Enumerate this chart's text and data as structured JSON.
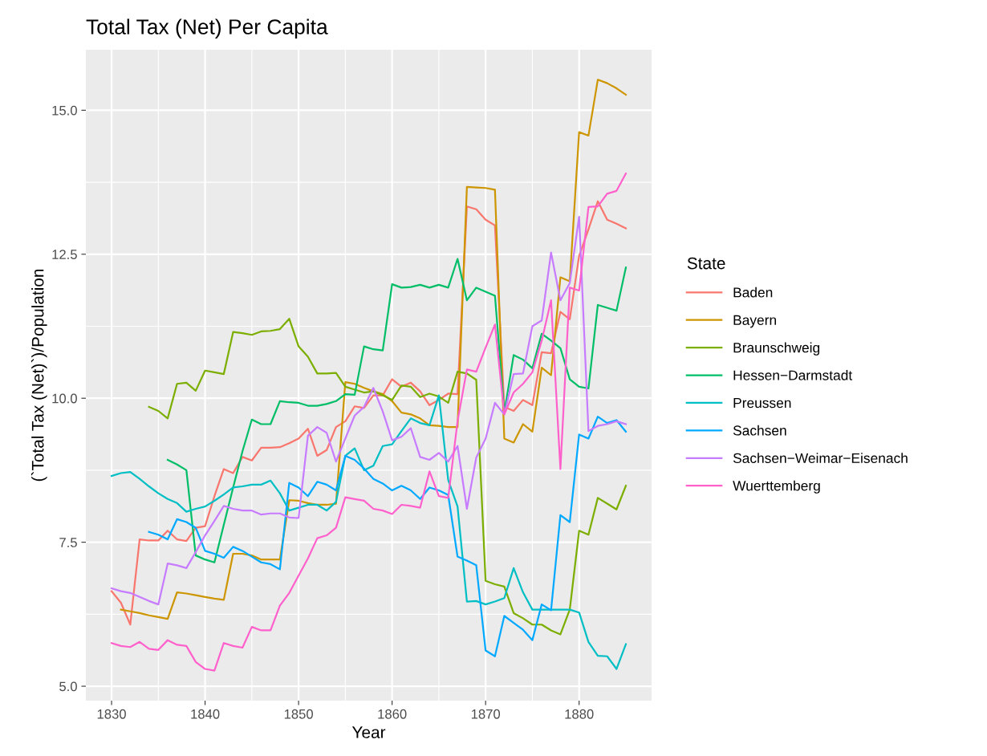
{
  "chart_data": {
    "type": "line",
    "title": "Total Tax (Net) Per Capita",
    "xlabel": "Year",
    "ylabel": "(`Total Tax (Net)`)/Population",
    "legend_title": "State",
    "legend": "right",
    "grid": true,
    "marker": "none",
    "line_style": "solid",
    "x": [
      1830,
      1831,
      1832,
      1833,
      1834,
      1835,
      1836,
      1837,
      1838,
      1839,
      1840,
      1841,
      1842,
      1843,
      1844,
      1845,
      1846,
      1847,
      1848,
      1849,
      1850,
      1851,
      1852,
      1853,
      1854,
      1855,
      1856,
      1857,
      1858,
      1859,
      1860,
      1861,
      1862,
      1863,
      1864,
      1865,
      1866,
      1867,
      1868,
      1869,
      1870,
      1871,
      1872,
      1873,
      1874,
      1875,
      1876,
      1877,
      1878,
      1879,
      1880,
      1881,
      1882,
      1883,
      1884,
      1885
    ],
    "xlim": [
      1827.25,
      1887.75
    ],
    "xticks": [
      1830,
      1840,
      1850,
      1860,
      1870,
      1880
    ],
    "ylim": [
      4.75,
      16.05
    ],
    "yticks": [
      {
        "value": 5,
        "label": "5.0"
      },
      {
        "value": 7.5,
        "label": "7.5"
      },
      {
        "value": 10,
        "label": "10.0"
      },
      {
        "value": 12.5,
        "label": "12.5"
      },
      {
        "value": 15,
        "label": "15.0"
      }
    ],
    "series": [
      {
        "name": "Baden",
        "color": "#f8766d",
        "values": [
          6.65,
          6.45,
          6.07,
          7.55,
          7.53,
          7.53,
          7.7,
          7.55,
          7.52,
          7.75,
          7.78,
          8.3,
          8.77,
          8.7,
          8.98,
          8.92,
          9.14,
          9.14,
          9.15,
          9.22,
          9.3,
          9.47,
          9.0,
          9.1,
          9.5,
          9.6,
          9.86,
          9.83,
          10.05,
          10.05,
          10.33,
          10.2,
          10.27,
          10.12,
          9.88,
          9.97,
          10.08,
          10.07,
          13.33,
          13.28,
          13.1,
          13.0,
          9.85,
          9.78,
          9.97,
          9.88,
          10.8,
          10.78,
          11.5,
          11.37,
          12.47,
          12.93,
          13.42,
          13.1,
          13.03,
          12.95
        ]
      },
      {
        "name": "Bayern",
        "color": "#cd9600",
        "values": [
          null,
          6.33,
          6.3,
          6.27,
          6.23,
          6.2,
          6.17,
          6.63,
          6.61,
          6.58,
          6.55,
          6.52,
          6.5,
          7.3,
          7.3,
          7.27,
          7.2,
          7.2,
          7.2,
          8.23,
          8.22,
          8.18,
          8.15,
          8.15,
          8.17,
          10.28,
          10.25,
          10.18,
          10.12,
          10.07,
          9.95,
          9.75,
          9.72,
          9.65,
          9.53,
          9.52,
          9.5,
          9.5,
          13.67,
          13.66,
          13.65,
          13.62,
          9.3,
          9.23,
          9.55,
          9.42,
          10.53,
          10.4,
          12.1,
          12.03,
          14.62,
          14.56,
          15.53,
          15.47,
          15.38,
          15.27
        ]
      },
      {
        "name": "Braunschweig",
        "color": "#7cae00",
        "values": [
          null,
          null,
          null,
          null,
          9.85,
          9.78,
          9.65,
          10.25,
          10.27,
          10.13,
          10.48,
          10.45,
          10.42,
          11.15,
          11.13,
          11.1,
          11.16,
          11.17,
          11.2,
          11.38,
          10.9,
          10.72,
          10.43,
          10.43,
          10.44,
          10.2,
          10.15,
          10.1,
          10.12,
          10.05,
          9.97,
          10.22,
          10.2,
          10.02,
          10.08,
          10.03,
          9.92,
          10.46,
          10.43,
          10.32,
          6.83,
          6.77,
          6.73,
          6.27,
          6.18,
          6.07,
          6.07,
          5.97,
          5.9,
          6.33,
          7.7,
          7.63,
          8.27,
          8.17,
          8.07,
          8.48
        ]
      },
      {
        "name": "Hessen−Darmstadt",
        "color": "#00be67",
        "values": [
          null,
          null,
          null,
          null,
          null,
          null,
          8.93,
          8.85,
          8.75,
          7.27,
          7.2,
          7.15,
          7.8,
          8.45,
          9.08,
          9.63,
          9.55,
          9.55,
          9.95,
          9.93,
          9.92,
          9.87,
          9.87,
          9.9,
          9.95,
          10.07,
          10.06,
          10.9,
          10.85,
          10.83,
          11.98,
          11.92,
          11.93,
          11.97,
          11.92,
          11.97,
          11.92,
          12.42,
          11.7,
          11.92,
          11.85,
          11.78,
          9.75,
          10.75,
          10.67,
          10.52,
          11.12,
          11.0,
          10.87,
          10.33,
          10.2,
          10.17,
          11.62,
          11.57,
          11.52,
          12.27
        ]
      },
      {
        "name": "Preussen",
        "color": "#00bfc4",
        "values": [
          8.65,
          8.7,
          8.72,
          8.6,
          8.47,
          8.35,
          8.25,
          8.18,
          8.03,
          8.08,
          8.12,
          8.22,
          8.33,
          8.45,
          8.47,
          8.5,
          8.5,
          8.57,
          8.35,
          8.05,
          8.1,
          8.15,
          8.15,
          8.05,
          8.2,
          9.0,
          9.13,
          8.75,
          8.83,
          9.17,
          9.2,
          9.43,
          9.65,
          9.57,
          9.53,
          10.05,
          8.58,
          8.12,
          6.47,
          6.48,
          6.42,
          6.47,
          6.53,
          7.05,
          6.63,
          6.33,
          6.33,
          6.33,
          6.33,
          6.33,
          6.28,
          5.77,
          5.53,
          5.52,
          5.3,
          5.73
        ]
      },
      {
        "name": "Sachsen",
        "color": "#00a9ff",
        "values": [
          null,
          null,
          null,
          null,
          7.68,
          7.63,
          7.55,
          7.9,
          7.85,
          7.75,
          7.35,
          7.3,
          7.23,
          7.42,
          7.35,
          7.25,
          7.15,
          7.12,
          7.03,
          8.53,
          8.45,
          8.3,
          8.55,
          8.5,
          8.4,
          9.0,
          8.93,
          8.78,
          8.6,
          8.52,
          8.4,
          8.48,
          8.4,
          8.25,
          8.45,
          8.4,
          8.32,
          7.25,
          7.18,
          7.1,
          5.62,
          5.52,
          6.22,
          6.1,
          5.98,
          5.8,
          6.42,
          6.32,
          7.97,
          7.85,
          9.37,
          9.3,
          9.68,
          9.57,
          9.62,
          9.42
        ]
      },
      {
        "name": "Sachsen−Weimar−Eisenach",
        "color": "#c77cff",
        "values": [
          6.7,
          6.65,
          6.62,
          6.55,
          6.48,
          6.42,
          7.13,
          7.1,
          7.05,
          7.33,
          7.62,
          7.87,
          8.13,
          8.08,
          8.05,
          8.05,
          7.98,
          8.0,
          8.0,
          7.93,
          7.92,
          9.35,
          9.5,
          9.4,
          8.9,
          9.3,
          9.7,
          9.85,
          10.18,
          9.77,
          9.27,
          9.33,
          9.48,
          8.98,
          8.93,
          9.05,
          8.9,
          9.17,
          8.08,
          8.97,
          9.3,
          9.92,
          9.72,
          10.42,
          10.43,
          11.25,
          11.35,
          12.53,
          11.7,
          12.0,
          13.15,
          9.43,
          9.52,
          9.55,
          9.6,
          9.55
        ]
      },
      {
        "name": "Wuerttemberg",
        "color": "#ff61cc",
        "values": [
          5.75,
          5.7,
          5.68,
          5.77,
          5.65,
          5.63,
          5.8,
          5.72,
          5.7,
          5.42,
          5.3,
          5.27,
          5.75,
          5.7,
          5.67,
          6.03,
          5.97,
          5.97,
          6.4,
          6.62,
          6.92,
          7.22,
          7.57,
          7.62,
          7.75,
          8.28,
          8.25,
          8.22,
          8.08,
          8.05,
          7.99,
          8.15,
          8.13,
          8.1,
          8.73,
          8.3,
          8.27,
          9.6,
          10.5,
          10.46,
          10.88,
          11.28,
          9.72,
          10.1,
          10.25,
          10.45,
          11.0,
          11.7,
          8.77,
          11.92,
          11.87,
          13.32,
          13.33,
          13.55,
          13.6,
          13.9
        ]
      }
    ]
  }
}
